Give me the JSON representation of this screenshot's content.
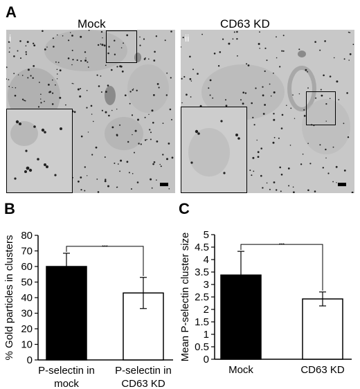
{
  "figure": {
    "panel_a": {
      "letter": "A",
      "left": {
        "title": "Mock",
        "sub": "i"
      },
      "right": {
        "title": "CD63 KD",
        "sub": "ii"
      }
    },
    "panel_b": {
      "letter": "B"
    },
    "panel_c": {
      "letter": "C"
    }
  },
  "chart_data": [
    {
      "type": "bar",
      "panel": "B",
      "ylabel": "% Gold particles in clusters",
      "ylim": [
        0,
        80
      ],
      "yticks": [
        "0",
        "10",
        "20",
        "30",
        "40",
        "50",
        "60",
        "70",
        "80"
      ],
      "categories": [
        "P-selectin in mock",
        "P-selectin in CD63 KD"
      ],
      "category_lines": [
        [
          "P-selectin in",
          "mock"
        ],
        [
          "P-selectin in",
          "CD63 KD"
        ]
      ],
      "values": [
        60,
        43
      ],
      "errors": [
        8.5,
        10
      ],
      "bar_colors": [
        "#000000",
        "#ffffff"
      ],
      "significance": "***"
    },
    {
      "type": "bar",
      "panel": "C",
      "ylabel": "Mean P-selectin cluster size",
      "ylim": [
        0,
        5
      ],
      "yticks": [
        "0",
        "0.5",
        "1",
        "1.5",
        "2",
        "2.5",
        "3",
        "3.5",
        "4",
        "4.5",
        "5"
      ],
      "categories": [
        "Mock",
        "CD63 KD"
      ],
      "category_lines": [
        [
          "Mock"
        ],
        [
          "CD63 KD"
        ]
      ],
      "values": [
        3.38,
        2.42
      ],
      "errors": [
        0.95,
        0.28
      ],
      "bar_colors": [
        "#000000",
        "#ffffff"
      ],
      "significance": "***"
    }
  ]
}
